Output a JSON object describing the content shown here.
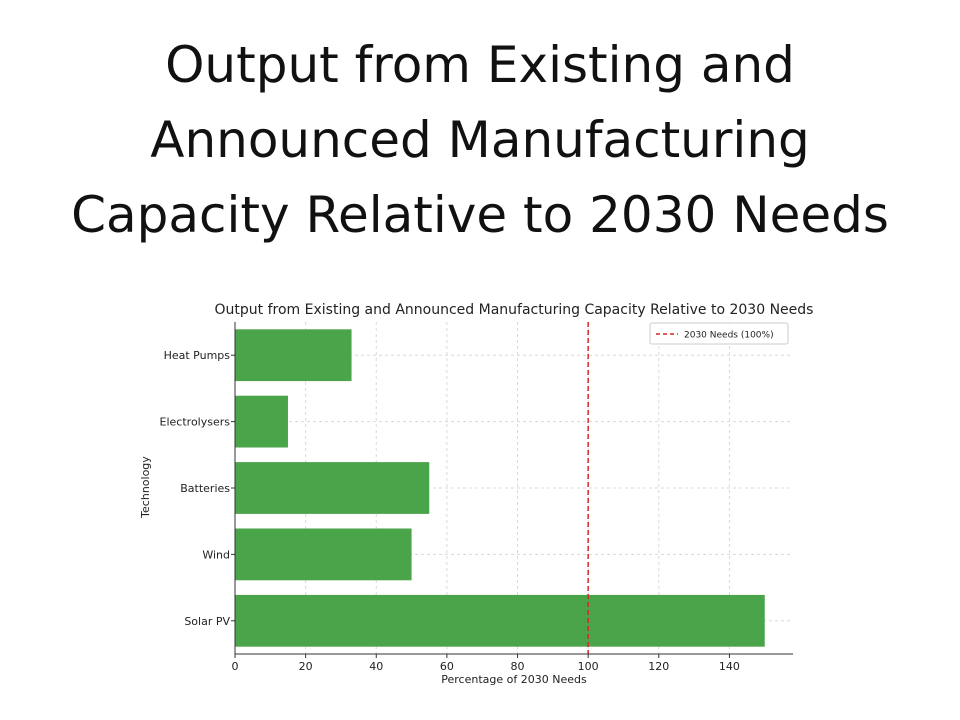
{
  "slide": {
    "title": "Output from Existing and Announced Manufacturing Capacity Relative to 2030 Needs"
  },
  "chart_data": {
    "type": "bar",
    "orientation": "horizontal",
    "title": "Output from Existing and Announced Manufacturing Capacity Relative to 2030 Needs",
    "xlabel": "Percentage of 2030 Needs",
    "ylabel": "Technology",
    "categories": [
      "Heat Pumps",
      "Electrolysers",
      "Batteries",
      "Wind",
      "Solar PV"
    ],
    "values": [
      33,
      15,
      55,
      50,
      150
    ],
    "xlim": [
      0,
      158
    ],
    "xticks": [
      0,
      20,
      40,
      60,
      80,
      100,
      120,
      140
    ],
    "bar_color": "#4aa54a",
    "grid": true,
    "reference_line": {
      "value": 100,
      "label": "2030 Needs (100%)",
      "color": "#d62728",
      "style": "dashed"
    },
    "legend_position": "top-right"
  }
}
